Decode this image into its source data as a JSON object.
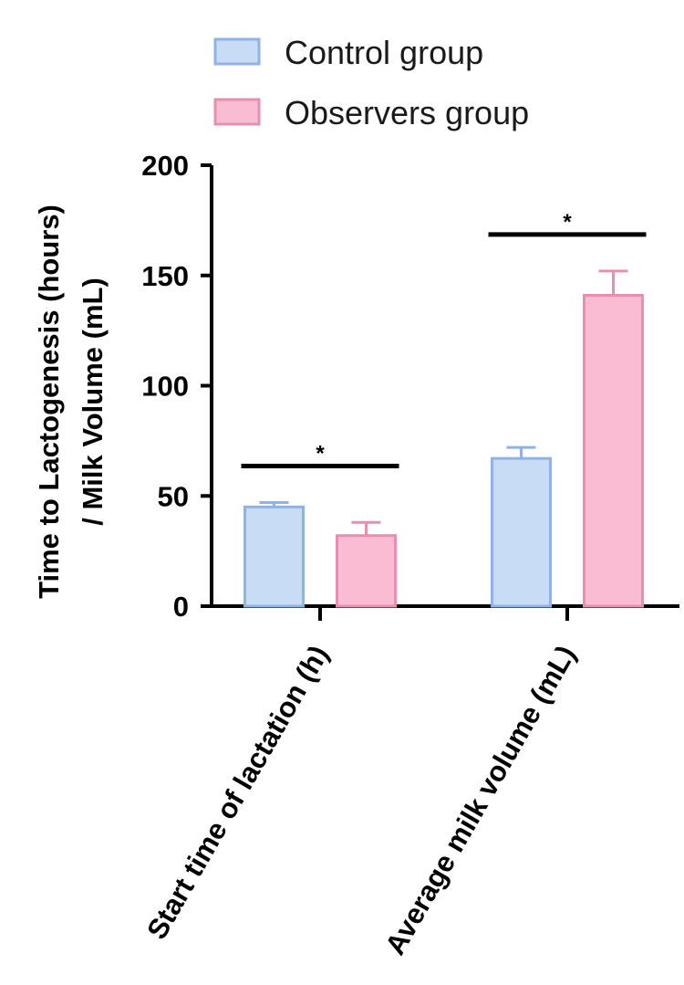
{
  "chart_data": {
    "type": "bar",
    "categories": [
      "Start time of lactation (h)",
      "Average milk volume (mL)"
    ],
    "series": [
      {
        "name": "Control group",
        "values": [
          45,
          67
        ],
        "errors": [
          2,
          5
        ],
        "fill": "#c9dcf5",
        "stroke": "#8fb3e6"
      },
      {
        "name": "Observers group",
        "values": [
          32,
          141
        ],
        "errors": [
          6,
          11
        ],
        "fill": "#f9bcd3",
        "stroke": "#e78fb1"
      }
    ],
    "ylabel_line1": "Time to Lactogenesis (hours)",
    "ylabel_line2": "/ Milk Volume (mL)",
    "ylim": [
      0,
      200
    ],
    "yticks": [
      "0",
      "50",
      "100",
      "150",
      "200"
    ],
    "significance": [
      {
        "category_index": 0,
        "label": "*"
      },
      {
        "category_index": 1,
        "label": "*"
      }
    ],
    "legend_position": "top"
  }
}
